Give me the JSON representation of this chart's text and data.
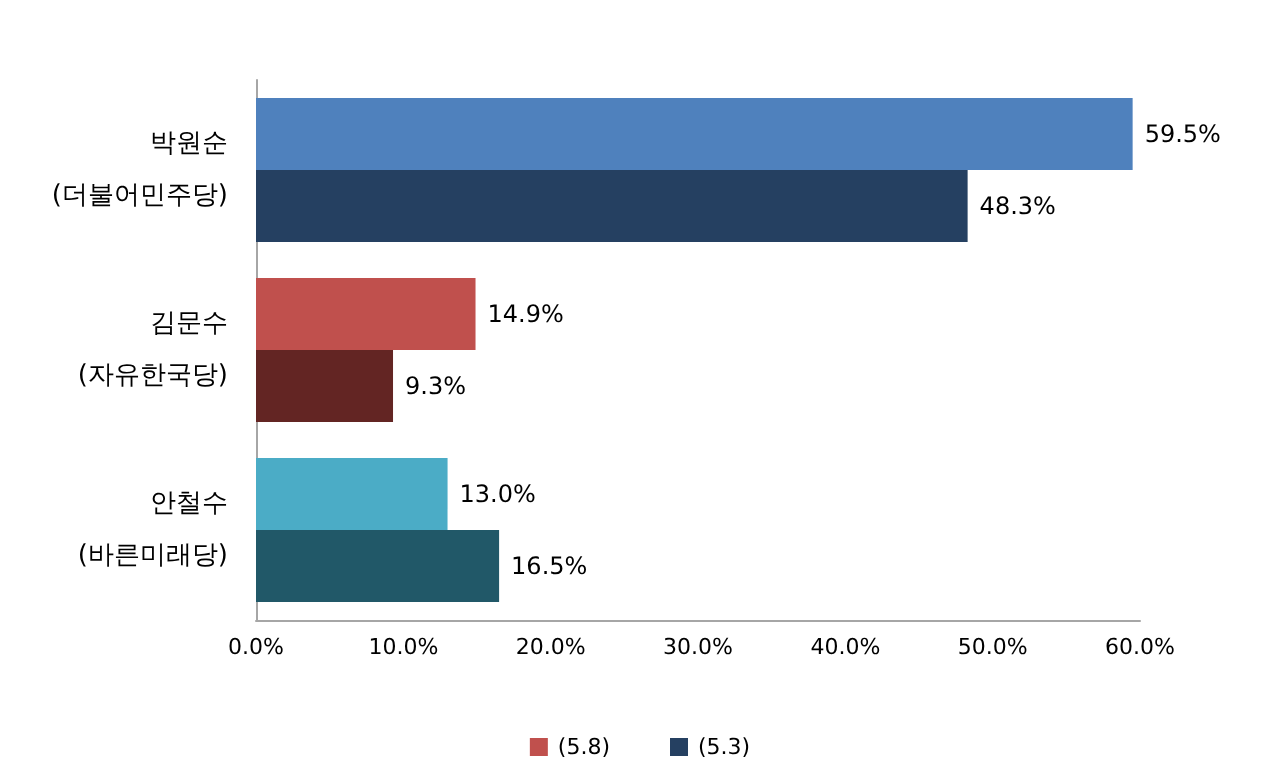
{
  "chart_data": {
    "type": "bar",
    "orientation": "horizontal",
    "categories": [
      "박원순 (더불어민주당)",
      "김문수 (자유한국당)",
      "안철수 (바른미래당)"
    ],
    "series": [
      {
        "name": "(5.8)",
        "color": "#c0504d",
        "colors": [
          "#4f81bd",
          "#c0504d",
          "#4bacc6"
        ],
        "values": [
          59.5,
          14.9,
          13.0
        ],
        "value_labels": [
          "59.5%",
          "14.9%",
          "13.0%"
        ]
      },
      {
        "name": "(5.3)",
        "color": "#254061",
        "colors": [
          "#254061",
          "#632523",
          "#215868"
        ],
        "values": [
          48.3,
          9.3,
          16.5
        ],
        "value_labels": [
          "48.3%",
          "9.3%",
          "16.5%"
        ]
      }
    ],
    "xlim": [
      0,
      60
    ],
    "xticks": [
      {
        "value": 0,
        "label": "0.0%"
      },
      {
        "value": 10,
        "label": "10.0%"
      },
      {
        "value": 20,
        "label": "20.0%"
      },
      {
        "value": 30,
        "label": "30.0%"
      },
      {
        "value": 40,
        "label": "40.0%"
      },
      {
        "value": 50,
        "label": "50.0%"
      },
      {
        "value": 60,
        "label": "60.0%"
      }
    ],
    "grid": false,
    "legend": "bottom"
  }
}
